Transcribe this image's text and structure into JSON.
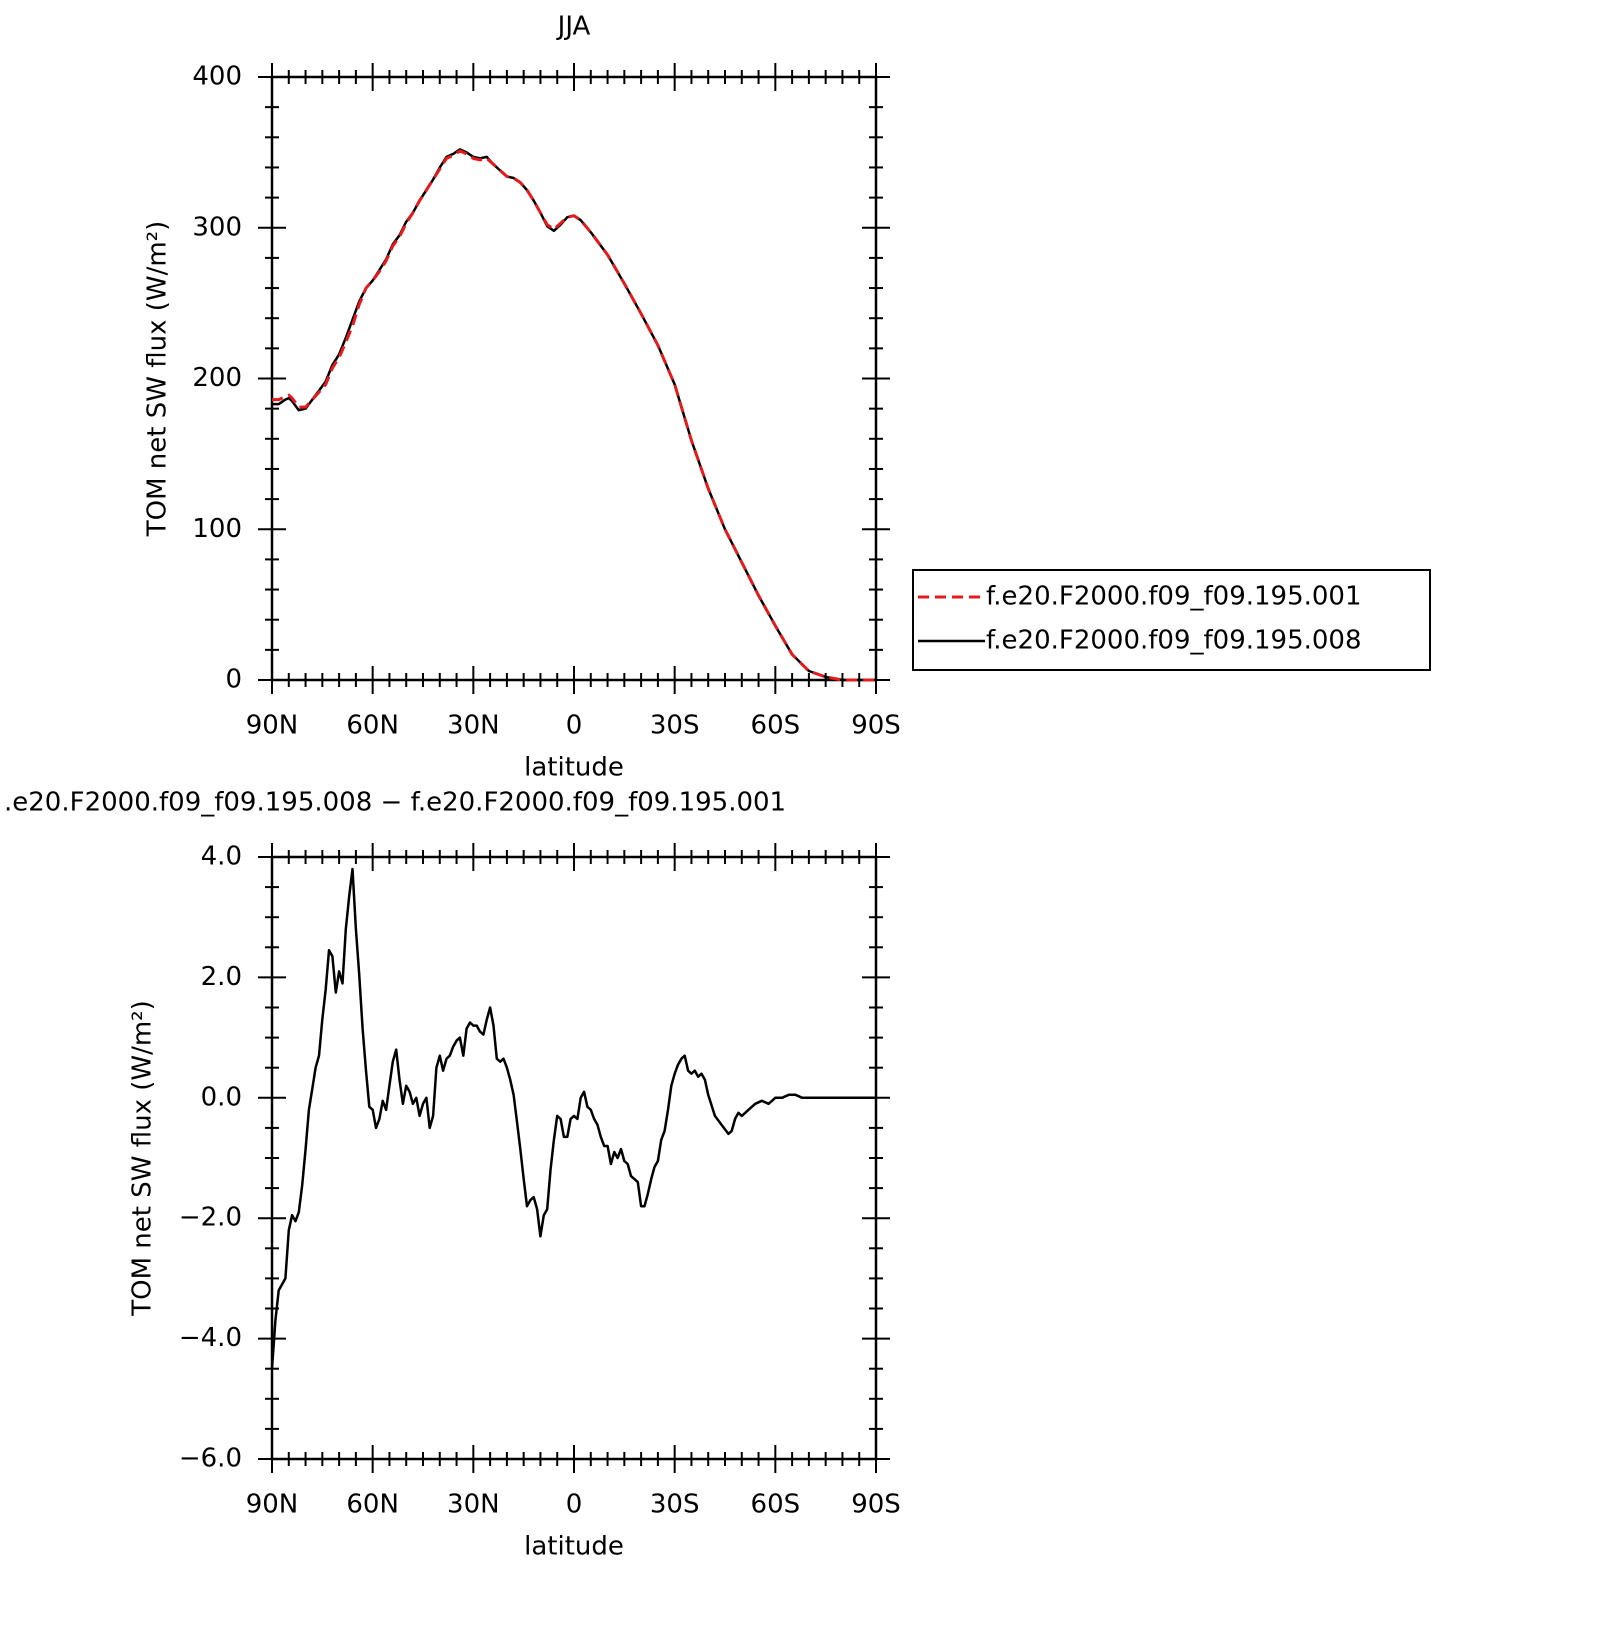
{
  "chart_data": [
    {
      "type": "line",
      "title": "JJA",
      "ylabel": "TOM net SW flux (W/m²)",
      "xlabel": "latitude",
      "xlim": [
        90,
        -90
      ],
      "xticks": [
        {
          "value": 90,
          "label": "90N"
        },
        {
          "value": 60,
          "label": "60N"
        },
        {
          "value": 30,
          "label": "30N"
        },
        0,
        {
          "value": -30,
          "label": "30S"
        },
        {
          "value": -60,
          "label": "60S"
        },
        {
          "value": -90,
          "label": "90S"
        }
      ],
      "ylim": [
        0,
        400
      ],
      "yticks": [
        0,
        100,
        200,
        300,
        400
      ],
      "legend": "right",
      "x": [
        90,
        88,
        86,
        85,
        84,
        82,
        80,
        78,
        76,
        74,
        72,
        70,
        68,
        66,
        64,
        62,
        60,
        58,
        56,
        54,
        52,
        50,
        48,
        46,
        44,
        42,
        40,
        38,
        36,
        34,
        32,
        30,
        28,
        26,
        24,
        22,
        20,
        18,
        16,
        14,
        12,
        10,
        8,
        6,
        4,
        2,
        0,
        -2,
        -5,
        -10,
        -15,
        -20,
        -25,
        -30,
        -35,
        -40,
        -45,
        -50,
        -55,
        -60,
        -65,
        -70,
        -75,
        -80,
        -85,
        -90
      ],
      "series": [
        {
          "name": "f.e20.F2000.f09_f09.195.001",
          "color": "#e41a1c",
          "linestyle": "dashed",
          "values": [
            186,
            186,
            188,
            189,
            187,
            181,
            181,
            186,
            191,
            196,
            207,
            214,
            224,
            235,
            249,
            260,
            265,
            271,
            278,
            288,
            294,
            303,
            310,
            318,
            325,
            332,
            339,
            346,
            348,
            351,
            349,
            346,
            345,
            346,
            342,
            338,
            334,
            333,
            330,
            325,
            318,
            310,
            302,
            299,
            303,
            307,
            308,
            305,
            297,
            282,
            263,
            243,
            222,
            196,
            159,
            127,
            100,
            78,
            56,
            36,
            17,
            6,
            2,
            0,
            0,
            0
          ]
        },
        {
          "name": "f.e20.F2000.f09_f09.195.008",
          "color": "#000000",
          "linestyle": "solid",
          "values": [
            183,
            183,
            186,
            187,
            185,
            179,
            180,
            186,
            192,
            198,
            209,
            216,
            227,
            239,
            251,
            260,
            265,
            272,
            279,
            289,
            295,
            304,
            310,
            318,
            325,
            332,
            340,
            347,
            349,
            352,
            350,
            347,
            346,
            347,
            342,
            338,
            334,
            333,
            330,
            325,
            318,
            310,
            301,
            298,
            302,
            307,
            308,
            305,
            297,
            282,
            263,
            243,
            222,
            196,
            159,
            127,
            100,
            78,
            56,
            36,
            17,
            6,
            2,
            0,
            0,
            0
          ]
        }
      ]
    },
    {
      "type": "line",
      "title": ".e20.F2000.f09_f09.195.008 − f.e20.F2000.f09_f09.195.001",
      "ylabel": "TOM net SW flux (W/m²)",
      "xlabel": "latitude",
      "xlim": [
        90,
        -90
      ],
      "xticks": [
        {
          "value": 90,
          "label": "90N"
        },
        {
          "value": 60,
          "label": "60N"
        },
        {
          "value": 30,
          "label": "30N"
        },
        0,
        {
          "value": -30,
          "label": "30S"
        },
        {
          "value": -60,
          "label": "60S"
        },
        {
          "value": -90,
          "label": "90S"
        }
      ],
      "ylim": [
        -6,
        4
      ],
      "yticks": [
        {
          "value": -6,
          "label": "−6.0"
        },
        {
          "value": -4,
          "label": "−4.0"
        },
        {
          "value": -2,
          "label": "−2.0"
        },
        {
          "value": 0,
          "label": "0.0"
        },
        {
          "value": 2,
          "label": "2.0"
        },
        {
          "value": 4,
          "label": "4.0"
        }
      ],
      "color": "#000000",
      "x": [
        90,
        89,
        88,
        86,
        85,
        84,
        83,
        82,
        81,
        80,
        79,
        78,
        77,
        76,
        75,
        74,
        73,
        72,
        71,
        70,
        69,
        68,
        67,
        66,
        65,
        64,
        63,
        62,
        61,
        60,
        59,
        58,
        57,
        56,
        55,
        54,
        53,
        52,
        51,
        50,
        49,
        48,
        47,
        46,
        45,
        44,
        43,
        42,
        41,
        40,
        39,
        38,
        37,
        36,
        35,
        34,
        33,
        32,
        31,
        30,
        29,
        28,
        27,
        26,
        25,
        24,
        23,
        22,
        21,
        20,
        19,
        18,
        17,
        16,
        15,
        14,
        13,
        12,
        11,
        10,
        9,
        8,
        7,
        6,
        5,
        4,
        3,
        2,
        1,
        0,
        -1,
        -2,
        -3,
        -4,
        -5,
        -6,
        -7,
        -8,
        -9,
        -10,
        -11,
        -12,
        -13,
        -14,
        -15,
        -16,
        -17,
        -18,
        -19,
        -20,
        -21,
        -22,
        -23,
        -24,
        -25,
        -26,
        -27,
        -28,
        -29,
        -30,
        -31,
        -32,
        -33,
        -34,
        -35,
        -36,
        -37,
        -38,
        -39,
        -40,
        -42,
        -44,
        -46,
        -47,
        -48,
        -49,
        -50,
        -52,
        -54,
        -56,
        -58,
        -60,
        -62,
        -64,
        -65,
        -66,
        -68,
        -70,
        -75,
        -80,
        -85,
        -90
      ],
      "values": [
        -4.5,
        -3.7,
        -3.2,
        -3.0,
        -2.2,
        -1.95,
        -2.05,
        -1.9,
        -1.45,
        -0.85,
        -0.2,
        0.15,
        0.5,
        0.7,
        1.3,
        1.8,
        2.45,
        2.35,
        1.75,
        2.1,
        1.9,
        2.8,
        3.35,
        3.8,
        2.8,
        2.05,
        1.15,
        0.45,
        -0.15,
        -0.2,
        -0.5,
        -0.35,
        -0.05,
        -0.2,
        0.2,
        0.6,
        0.8,
        0.3,
        -0.1,
        0.2,
        0.1,
        -0.1,
        0,
        -0.3,
        -0.1,
        0,
        -0.5,
        -0.3,
        0.5,
        0.7,
        0.45,
        0.65,
        0.7,
        0.85,
        0.95,
        1.0,
        0.7,
        1.15,
        1.25,
        1.2,
        1.2,
        1.1,
        1.05,
        1.3,
        1.5,
        1.2,
        0.65,
        0.6,
        0.65,
        0.5,
        0.3,
        0.05,
        -0.4,
        -0.85,
        -1.35,
        -1.8,
        -1.7,
        -1.65,
        -1.85,
        -2.3,
        -1.95,
        -1.85,
        -1.2,
        -0.7,
        -0.3,
        -0.35,
        -0.65,
        -0.65,
        -0.35,
        -0.3,
        -0.35,
        0,
        0.1,
        -0.15,
        -0.2,
        -0.35,
        -0.45,
        -0.65,
        -0.8,
        -0.8,
        -1.1,
        -0.9,
        -1.0,
        -0.85,
        -1.05,
        -1.1,
        -1.3,
        -1.35,
        -1.4,
        -1.8,
        -1.8,
        -1.6,
        -1.35,
        -1.15,
        -1.05,
        -0.7,
        -0.55,
        -0.2,
        0.2,
        0.4,
        0.55,
        0.65,
        0.7,
        0.45,
        0.4,
        0.45,
        0.35,
        0.4,
        0.3,
        0.05,
        -0.3,
        -0.45,
        -0.6,
        -0.55,
        -0.35,
        -0.25,
        -0.3,
        -0.2,
        -0.1,
        -0.05,
        -0.1,
        0,
        0,
        0.05,
        0.05,
        0.05,
        0,
        0,
        0,
        0,
        0,
        0
      ]
    }
  ]
}
